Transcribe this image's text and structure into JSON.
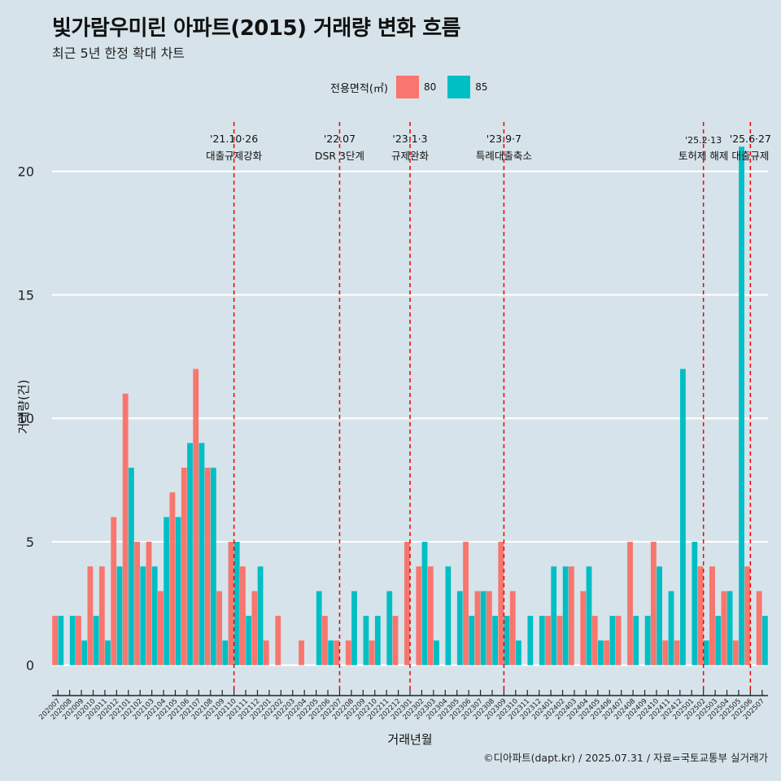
{
  "title": "빛가람우미린 아파트(2015) 거래량 변화 흐름",
  "subtitle": "최근 5년 한정 확대 차트",
  "caption": "©디아파트(dapt.kr) / 2025.07.31 / 자료=국토교통부 실거래가",
  "colors": {
    "background": "#d6e3ea",
    "s80": "#f8766d",
    "s85": "#00bfc4",
    "event_line": "#ee0000",
    "grid": "#ffffff"
  },
  "legend": {
    "title": "전용면적(㎡)",
    "items": [
      {
        "label": "80",
        "color": "#f8766d"
      },
      {
        "label": "85",
        "color": "#00bfc4"
      }
    ]
  },
  "chart_data": {
    "type": "bar",
    "title": "빛가람우미린 아파트(2015) 거래량 변화 흐름",
    "subtitle": "최근 5년 한정 확대 차트",
    "xlabel": "거래년월",
    "ylabel": "거래량(건)",
    "ylim": [
      -1,
      22
    ],
    "yticks": [
      0,
      5,
      10,
      15,
      20
    ],
    "grid": true,
    "legend_position": "top",
    "categories": [
      "202007",
      "202008",
      "202009",
      "202010",
      "202011",
      "202012",
      "202101",
      "202102",
      "202103",
      "202104",
      "202105",
      "202106",
      "202107",
      "202108",
      "202109",
      "202110",
      "202111",
      "202112",
      "202201",
      "202202",
      "202203",
      "202204",
      "202205",
      "202206",
      "202207",
      "202208",
      "202209",
      "202210",
      "202211",
      "202212",
      "202301",
      "202302",
      "202303",
      "202304",
      "202305",
      "202306",
      "202307",
      "202308",
      "202309",
      "202310",
      "202311",
      "202312",
      "202401",
      "202402",
      "202403",
      "202404",
      "202405",
      "202406",
      "202407",
      "202408",
      "202409",
      "202410",
      "202411",
      "202412",
      "202501",
      "202502",
      "202503",
      "202504",
      "202505",
      "202506",
      "202507"
    ],
    "tick_labels": [
      "202007",
      "202008",
      "202009",
      "202010",
      "202011",
      "202012",
      "202101",
      "202102",
      "202103",
      "202104",
      "202105",
      "202106",
      "202107",
      "202108",
      "202109",
      "202110",
      "202111",
      "202112",
      "202201",
      "202202",
      "202203",
      "202204",
      "202205",
      "202206",
      "202207",
      "202208",
      "202209",
      "202210",
      "202211",
      "202212",
      "202301",
      "202302",
      "202303",
      "202304",
      "202305",
      "202306",
      "202307",
      "202308",
      "202309",
      "202310",
      "202311",
      "202312",
      "202401",
      "202402",
      "202403",
      "202404",
      "202405",
      "202406",
      "202407",
      "202408",
      "202409",
      "202410",
      "202411",
      "202412",
      "202501",
      "202502",
      "202503",
      "202504",
      "202505",
      "202506",
      "202507"
    ],
    "series": [
      {
        "name": "80",
        "color": "#f8766d",
        "values": [
          2,
          0,
          2,
          4,
          4,
          6,
          11,
          5,
          5,
          3,
          7,
          8,
          12,
          8,
          3,
          5,
          4,
          3,
          1,
          2,
          0,
          1,
          0,
          2,
          1,
          1,
          0,
          1,
          0,
          2,
          5,
          4,
          4,
          0,
          0,
          5,
          3,
          3,
          5,
          3,
          0,
          0,
          2,
          2,
          4,
          3,
          2,
          1,
          2,
          5,
          0,
          5,
          1,
          1,
          0,
          4,
          4,
          3,
          1,
          4,
          3
        ]
      },
      {
        "name": "85",
        "color": "#00bfc4",
        "values": [
          2,
          2,
          1,
          2,
          1,
          4,
          8,
          4,
          4,
          6,
          6,
          9,
          9,
          8,
          1,
          5,
          2,
          4,
          0,
          0,
          0,
          0,
          3,
          1,
          0,
          3,
          2,
          2,
          3,
          0,
          0,
          5,
          1,
          4,
          3,
          2,
          3,
          2,
          2,
          1,
          2,
          2,
          4,
          4,
          0,
          4,
          1,
          2,
          0,
          2,
          2,
          4,
          3,
          12,
          5,
          1,
          2,
          3,
          21,
          0,
          2
        ]
      }
    ],
    "events": [
      {
        "category": "202110",
        "date": "'21.10·26",
        "label": "대출규제강화"
      },
      {
        "category": "202207",
        "date": "'22.07",
        "label": "DSR 3단계"
      },
      {
        "category": "202301",
        "date": "'23.1·3",
        "label": "규제완화"
      },
      {
        "category": "202309",
        "date": "'23.9·7",
        "label": "특례대출축소"
      },
      {
        "category": "202502",
        "date": "'25.2·13",
        "label": "토허제 해제"
      },
      {
        "category": "202506",
        "date": "'25.6·27",
        "label": "대출규제"
      }
    ]
  }
}
